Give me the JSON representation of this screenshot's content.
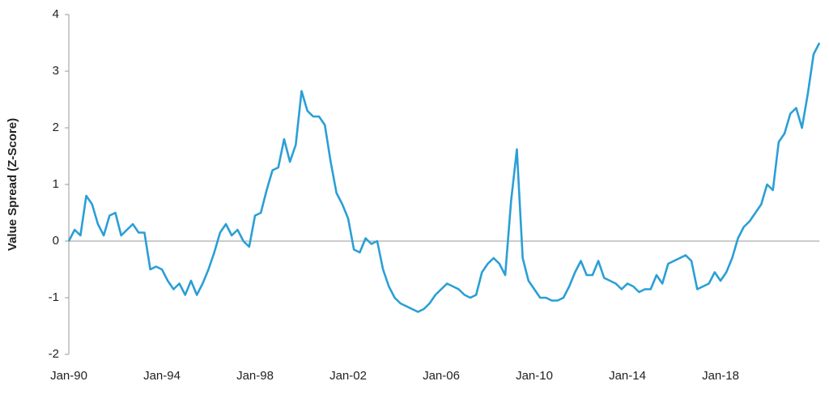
{
  "chart_data": {
    "type": "line",
    "y_label": "Value Spread (Z-Score)",
    "categories": [
      "Jan-90",
      null,
      null,
      null,
      null,
      null,
      null,
      null,
      null,
      null,
      null,
      null,
      null,
      null,
      null,
      null,
      "Jan-94",
      null,
      null,
      null,
      null,
      null,
      null,
      null,
      null,
      null,
      null,
      null,
      null,
      null,
      null,
      null,
      "Jan-98",
      null,
      null,
      null,
      null,
      null,
      null,
      null,
      null,
      null,
      null,
      null,
      null,
      null,
      null,
      null,
      "Jan-02",
      null,
      null,
      null,
      null,
      null,
      null,
      null,
      null,
      null,
      null,
      null,
      null,
      null,
      null,
      null,
      "Jan-06",
      null,
      null,
      null,
      null,
      null,
      null,
      null,
      null,
      null,
      null,
      null,
      null,
      null,
      null,
      null,
      "Jan-10",
      null,
      null,
      null,
      null,
      null,
      null,
      null,
      null,
      null,
      null,
      null,
      null,
      null,
      null,
      null,
      "Jan-14",
      null,
      null,
      null,
      null,
      null,
      null,
      null,
      null,
      null,
      null,
      null,
      null,
      null,
      null,
      null,
      "Jan-18",
      null,
      null,
      null,
      null,
      null,
      null,
      null,
      null,
      null,
      null,
      null,
      null,
      null,
      null,
      null,
      null,
      null
    ],
    "values": [
      0,
      0.2,
      0.1,
      0.8,
      0.65,
      0.3,
      0.1,
      0.45,
      0.5,
      0.1,
      0.2,
      0.3,
      0.15,
      0.15,
      -0.5,
      -0.45,
      -0.5,
      -0.7,
      -0.85,
      -0.75,
      -0.95,
      -0.7,
      -0.95,
      -0.75,
      -0.5,
      -0.2,
      0.15,
      0.3,
      0.1,
      0.2,
      0,
      -0.1,
      0.45,
      0.5,
      0.9,
      1.25,
      1.3,
      1.8,
      1.4,
      1.7,
      2.65,
      2.3,
      2.2,
      2.2,
      2.05,
      1.4,
      0.85,
      0.65,
      0.4,
      -0.15,
      -0.2,
      0.05,
      -0.05,
      0,
      -0.5,
      -0.8,
      -1,
      -1.1,
      -1.15,
      -1.2,
      -1.25,
      -1.2,
      -1.1,
      -0.95,
      -0.85,
      -0.75,
      -0.8,
      -0.85,
      -0.95,
      -1,
      -0.95,
      -0.55,
      -0.4,
      -0.3,
      -0.4,
      -0.6,
      0.7,
      1.62,
      -0.3,
      -0.7,
      -0.85,
      -1,
      -1,
      -1.05,
      -1.05,
      -1,
      -0.8,
      -0.55,
      -0.35,
      -0.6,
      -0.6,
      -0.35,
      -0.65,
      -0.7,
      -0.75,
      -0.85,
      -0.75,
      -0.8,
      -0.9,
      -0.85,
      -0.85,
      -0.6,
      -0.75,
      -0.4,
      -0.35,
      -0.3,
      -0.25,
      -0.35,
      -0.85,
      -0.8,
      -0.75,
      -0.55,
      -0.7,
      -0.55,
      -0.3,
      0.05,
      0.25,
      0.35,
      0.5,
      0.65,
      1,
      0.9,
      1.75,
      1.9,
      2.25,
      2.35,
      2,
      2.6,
      3.3,
      3.5
    ],
    "color": "#2a9fd6",
    "ylim": [
      -2,
      4
    ],
    "yticks": [
      -2,
      -1,
      0,
      1,
      2,
      3,
      4
    ]
  }
}
